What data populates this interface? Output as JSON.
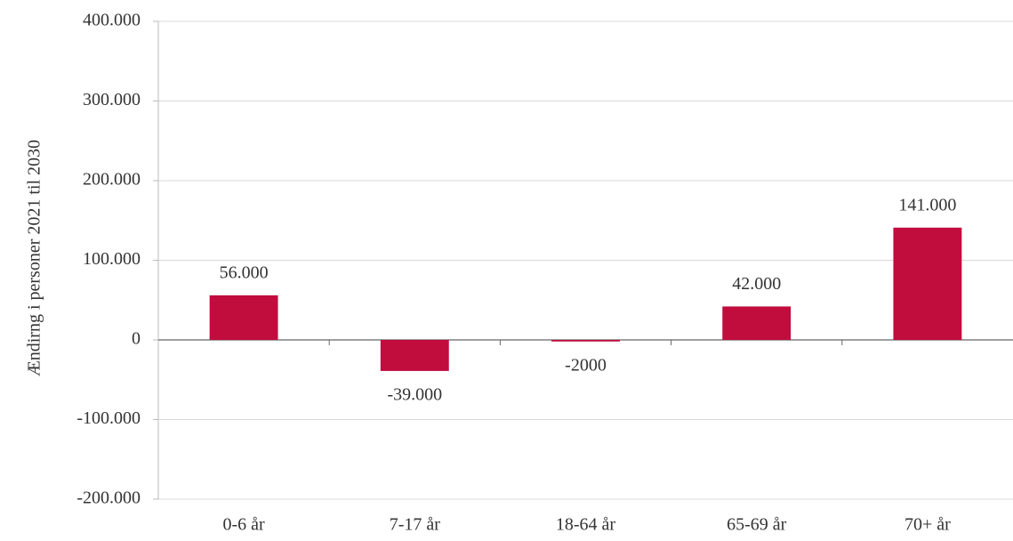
{
  "chart_data": {
    "type": "bar",
    "y_label": "Ændirng i personer 2021 til 2030",
    "categories": [
      "0-6 år",
      "7-17 år",
      "18-64 år",
      "65-69 år",
      "70+ år"
    ],
    "values": [
      56000,
      -39000,
      -2000,
      42000,
      141000
    ],
    "value_labels": [
      "56.000",
      "-39.000",
      "-2000",
      "42.000",
      "141.000"
    ],
    "color": "#c00d3e",
    "ylim": [
      -200000,
      400000
    ],
    "yticks": [
      {
        "value": -200000,
        "label": "-200.000"
      },
      {
        "value": -100000,
        "label": "-100.000"
      },
      0,
      {
        "value": 100000,
        "label": "100.000"
      },
      {
        "value": 200000,
        "label": "200.000"
      },
      {
        "value": 300000,
        "label": "300.000"
      },
      {
        "value": 400000,
        "label": "400.000"
      }
    ],
    "grid": true
  }
}
